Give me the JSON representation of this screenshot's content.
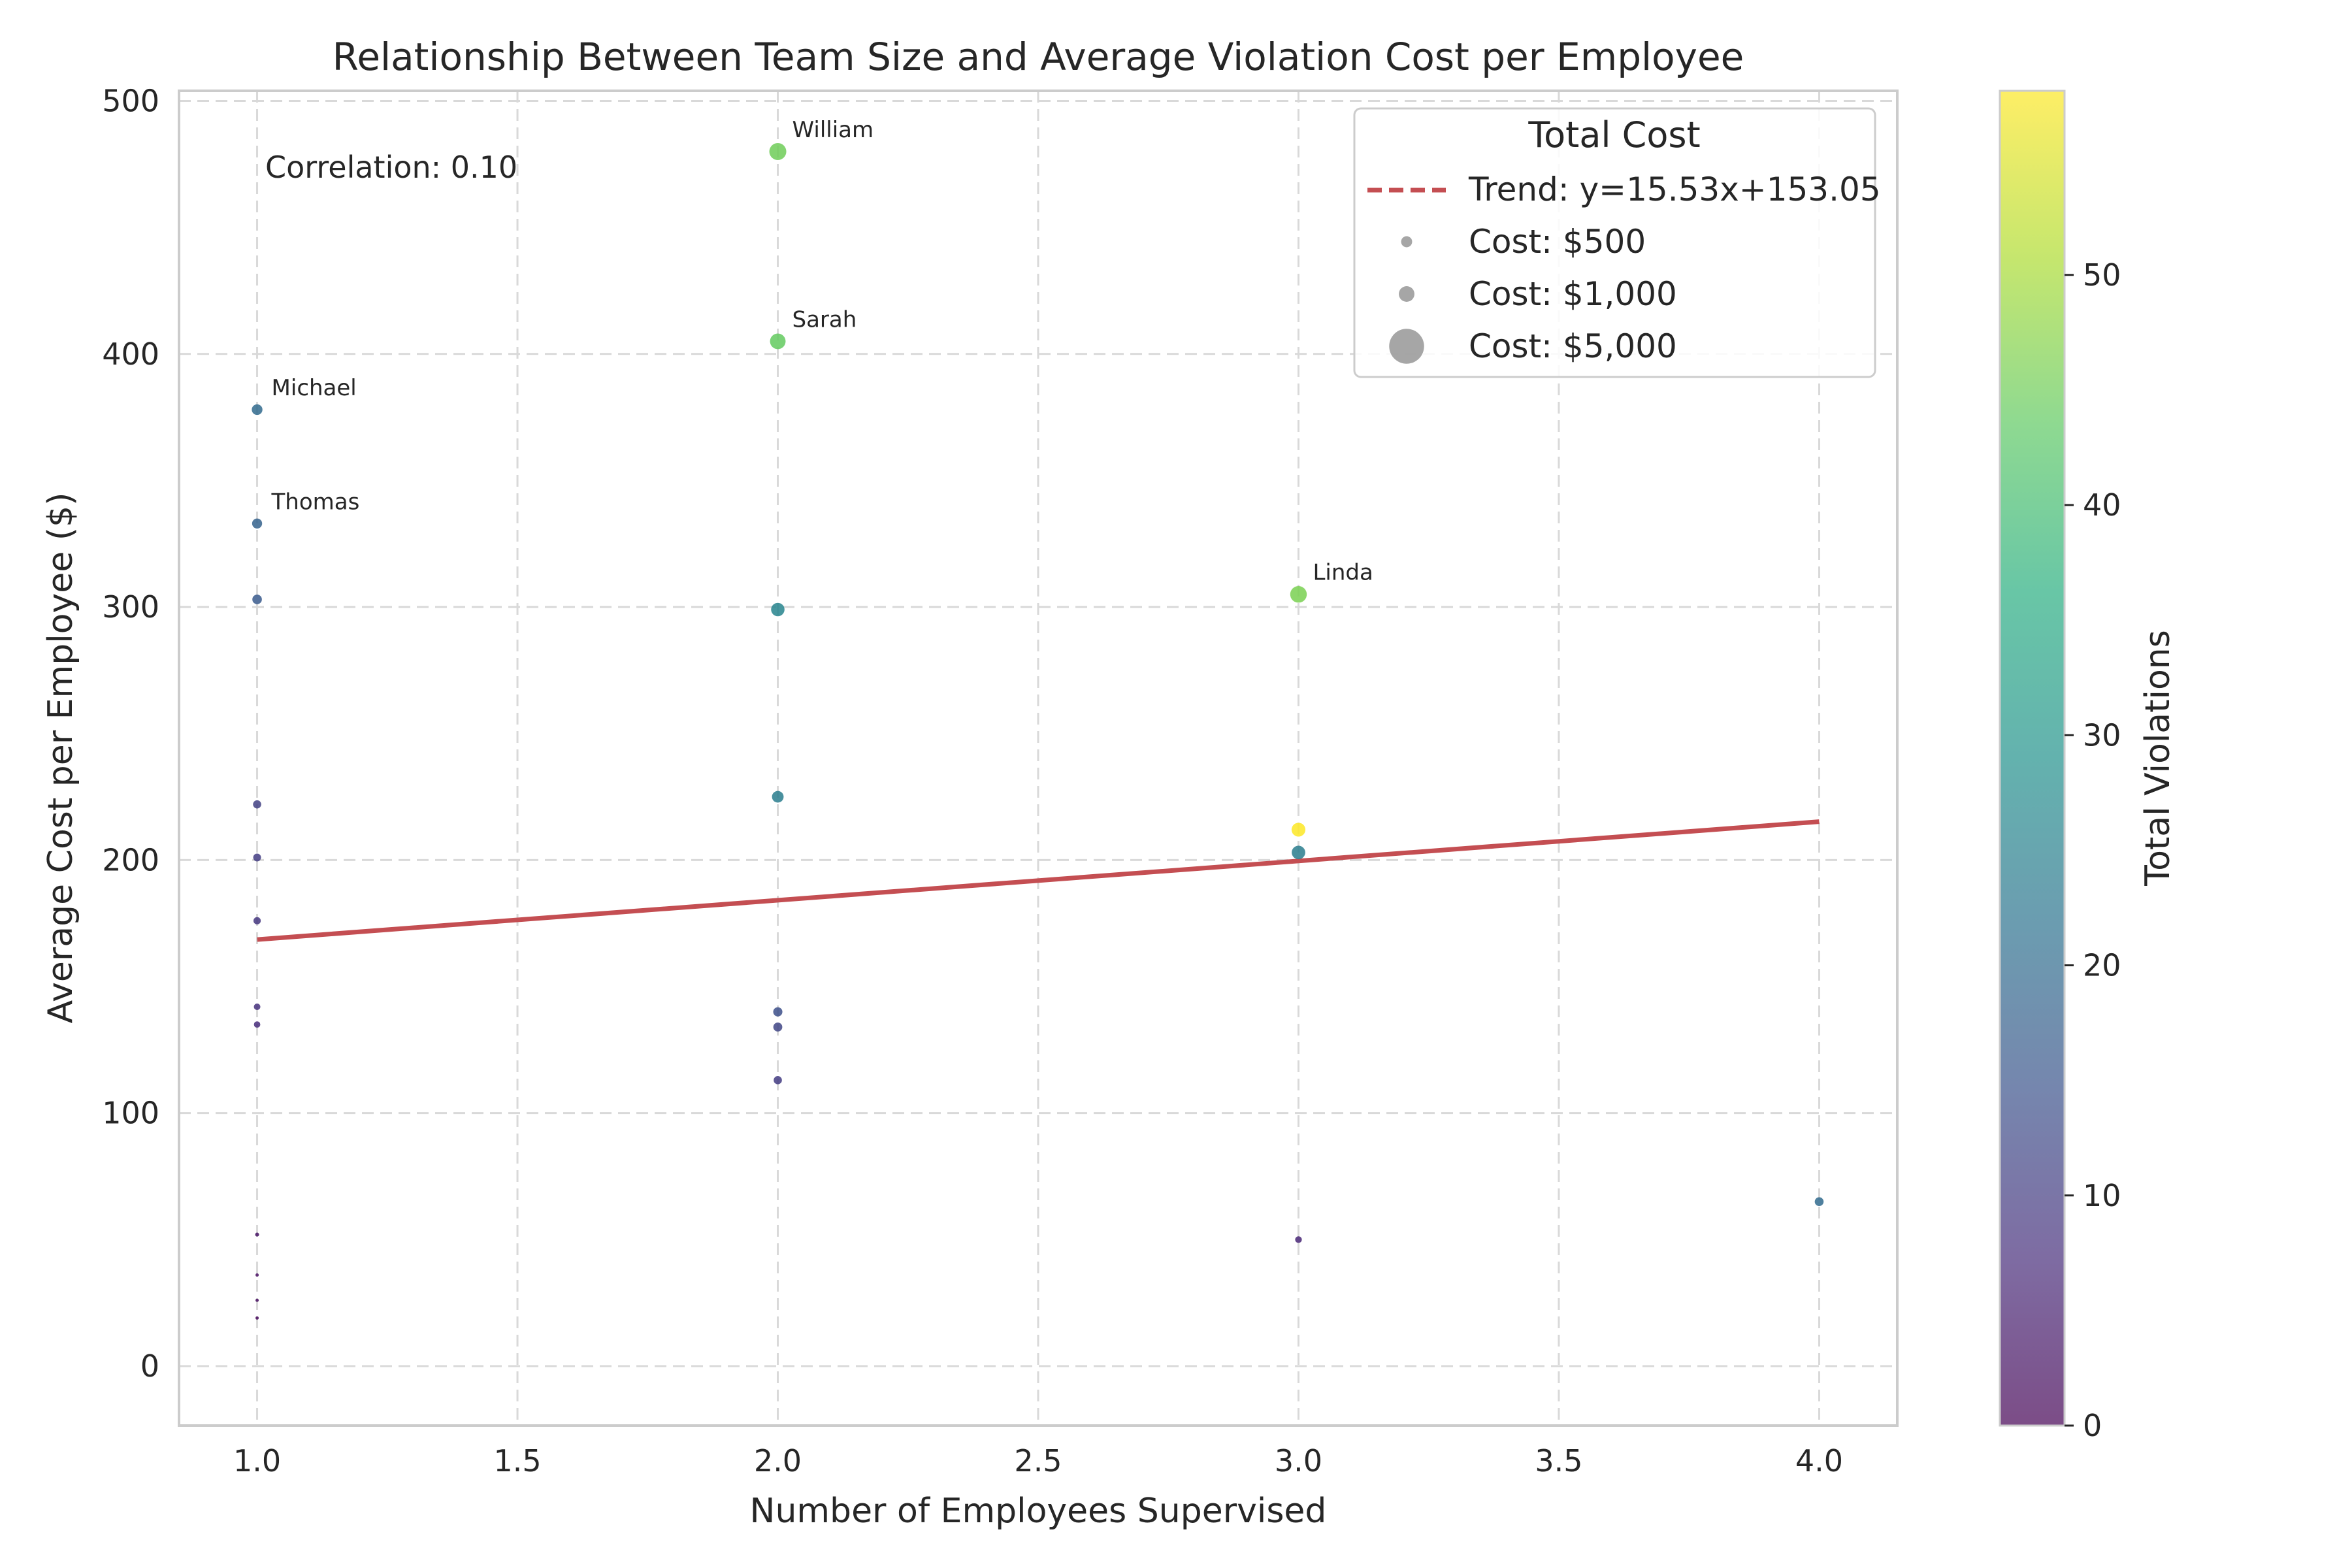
{
  "chart_data": {
    "type": "scatter",
    "title": "Relationship Between Team Size and Average Violation Cost per Employee",
    "xlabel": "Number of Employees Supervised",
    "ylabel": "Average Cost per Employee ($)",
    "xlim": [
      0.85,
      4.15
    ],
    "ylim": [
      -23.5,
      504
    ],
    "xticks": [
      1.0,
      1.5,
      2.0,
      2.5,
      3.0,
      3.5,
      4.0
    ],
    "xtick_labels": [
      "1.0",
      "1.5",
      "2.0",
      "2.5",
      "3.0",
      "3.5",
      "4.0"
    ],
    "yticks": [
      0,
      100,
      200,
      300,
      400,
      500
    ],
    "ytick_labels": [
      "0",
      "100",
      "200",
      "300",
      "400",
      "500"
    ],
    "grid": true,
    "legend_placement": "upper right",
    "annotation": "Correlation: 0.10",
    "trend": {
      "label": "Trend: y=15.53x+153.05",
      "slope": 15.53,
      "intercept": 153.05,
      "x_range": [
        1,
        4
      ],
      "color": "#c44e52"
    },
    "legend": {
      "title": "Total Cost",
      "size_entries": [
        {
          "label": "Cost: $500",
          "cost": 500
        },
        {
          "label": "Cost: $1,000",
          "cost": 1000
        },
        {
          "label": "Cost: $5,000",
          "cost": 5000
        }
      ]
    },
    "colorbar": {
      "label": "Total Violations",
      "colormap": "viridis",
      "range": [
        0,
        58
      ],
      "ticks": [
        0,
        10,
        20,
        30,
        40,
        50
      ],
      "tick_labels": [
        "0",
        "10",
        "20",
        "30",
        "40",
        "50"
      ]
    },
    "points": [
      {
        "name": "Michael",
        "x": 1,
        "y": 378,
        "violations": 20,
        "total_cost": 378
      },
      {
        "name": "Thomas",
        "x": 1,
        "y": 333,
        "violations": 18,
        "total_cost": 333
      },
      {
        "name": "",
        "x": 1,
        "y": 303,
        "violations": 16,
        "total_cost": 303
      },
      {
        "name": "",
        "x": 1,
        "y": 222,
        "violations": 11,
        "total_cost": 222
      },
      {
        "name": "",
        "x": 1,
        "y": 201,
        "violations": 10,
        "total_cost": 201
      },
      {
        "name": "",
        "x": 1,
        "y": 176,
        "violations": 9,
        "total_cost": 176
      },
      {
        "name": "",
        "x": 1,
        "y": 142,
        "violations": 8,
        "total_cost": 142
      },
      {
        "name": "",
        "x": 1,
        "y": 135,
        "violations": 7,
        "total_cost": 135
      },
      {
        "name": "",
        "x": 1,
        "y": 52,
        "violations": 3,
        "total_cost": 52
      },
      {
        "name": "",
        "x": 1,
        "y": 36,
        "violations": 2,
        "total_cost": 36
      },
      {
        "name": "",
        "x": 1,
        "y": 26,
        "violations": 2,
        "total_cost": 26
      },
      {
        "name": "",
        "x": 1,
        "y": 19,
        "violations": 1,
        "total_cost": 19
      },
      {
        "name": "William",
        "x": 2,
        "y": 480,
        "violations": 45,
        "total_cost": 960
      },
      {
        "name": "Sarah",
        "x": 2,
        "y": 405,
        "violations": 44,
        "total_cost": 810
      },
      {
        "name": "",
        "x": 2,
        "y": 299,
        "violations": 26,
        "total_cost": 598
      },
      {
        "name": "",
        "x": 2,
        "y": 225,
        "violations": 24,
        "total_cost": 450
      },
      {
        "name": "",
        "x": 2,
        "y": 140,
        "violations": 14,
        "total_cost": 280
      },
      {
        "name": "",
        "x": 2,
        "y": 134,
        "violations": 12,
        "total_cost": 268
      },
      {
        "name": "",
        "x": 2,
        "y": 113,
        "violations": 10,
        "total_cost": 226
      },
      {
        "name": "Linda",
        "x": 3,
        "y": 305,
        "violations": 46,
        "total_cost": 915
      },
      {
        "name": "",
        "x": 3,
        "y": 212,
        "violations": 58,
        "total_cost": 636
      },
      {
        "name": "",
        "x": 3,
        "y": 203,
        "violations": 24,
        "total_cost": 609
      },
      {
        "name": "",
        "x": 3,
        "y": 50,
        "violations": 6,
        "total_cost": 150
      },
      {
        "name": "",
        "x": 4,
        "y": 65,
        "violations": 20,
        "total_cost": 260
      }
    ]
  }
}
